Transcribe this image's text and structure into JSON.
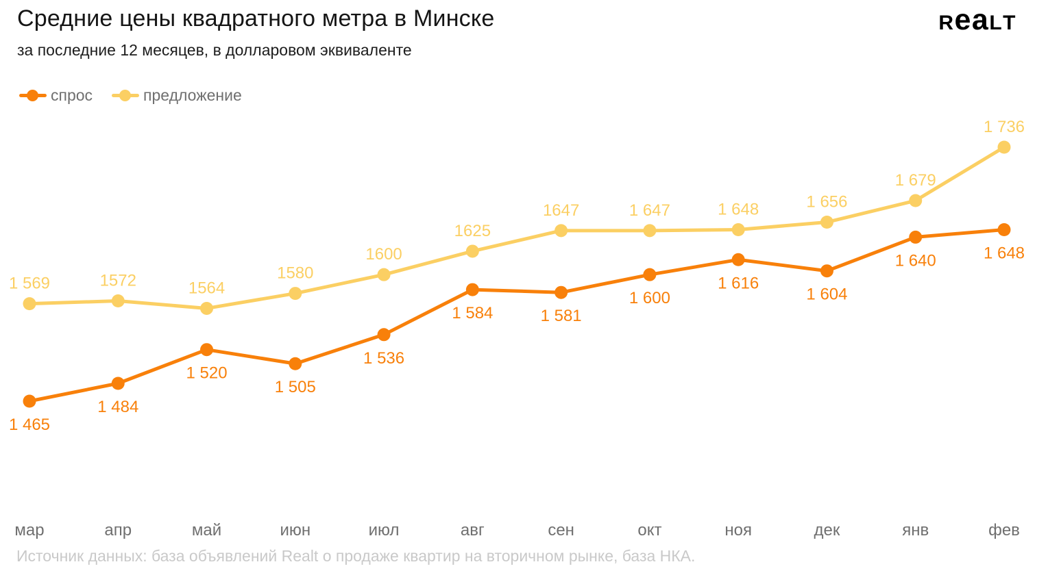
{
  "header": {
    "title": "Средние цены квадратного метра в Минске",
    "subtitle": "за последние 12 месяцев, в долларовом эквиваленте",
    "logo_text": "Realt"
  },
  "legend": {
    "items": [
      {
        "label": "спрос",
        "color": "#F8800A"
      },
      {
        "label": "предложение",
        "color": "#FBCF63"
      }
    ]
  },
  "footer": {
    "source": "Источник данных: база объявлений Realt о продаже квартир на вторичном рынке, база НКА."
  },
  "chart_data": {
    "type": "line",
    "title": "Средние цены квадратного метра в Минске",
    "subtitle": "за последние 12 месяцев, в долларовом эквиваленте",
    "categories": [
      "мар",
      "апр",
      "май",
      "июн",
      "июл",
      "авг",
      "сен",
      "окт",
      "ноя",
      "дек",
      "янв",
      "фев"
    ],
    "series": [
      {
        "name": "спрос",
        "color": "#F8800A",
        "values": [
          1465,
          1484,
          1520,
          1505,
          1536,
          1584,
          1581,
          1600,
          1616,
          1604,
          1640,
          1648
        ],
        "labels": [
          "1 465",
          "1 484",
          "1 520",
          "1 505",
          "1 536",
          "1 584",
          "1 581",
          "1 600",
          "1 616",
          "1 604",
          "1 640",
          "1 648"
        ],
        "label_position": "below"
      },
      {
        "name": "предложение",
        "color": "#FBCF63",
        "values": [
          1569,
          1572,
          1564,
          1580,
          1600,
          1625,
          1647,
          1647,
          1648,
          1656,
          1679,
          1736
        ],
        "labels": [
          "1 569",
          "1572",
          "1564",
          "1580",
          "1600",
          "1625",
          "1647",
          "1 647",
          "1 648",
          "1 656",
          "1 679",
          "1 736"
        ],
        "label_position": "above"
      }
    ],
    "ylim": [
      1465,
      1736
    ],
    "grid": false,
    "y_axis_shown": false,
    "legend_position": "top-left",
    "axis_label_color": "#6f6f6f",
    "source": "Источник данных: база объявлений Realt о продаже квартир на вторичном рынке, база НКА."
  }
}
